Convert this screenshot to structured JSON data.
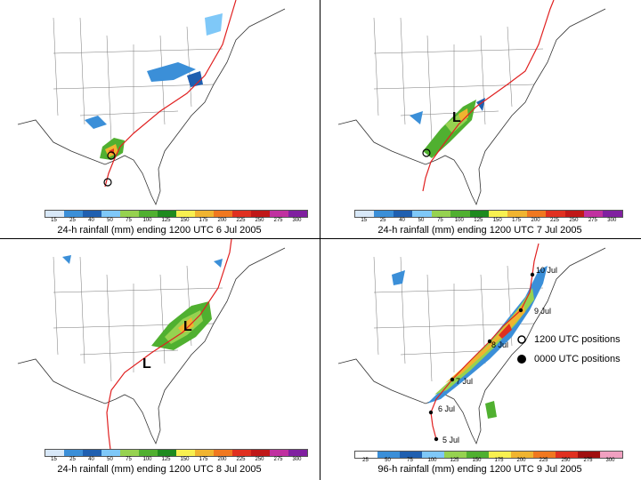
{
  "panels": [
    {
      "caption": "24-h rainfall (mm) ending 1200 UTC 6 Jul 2005",
      "low_marker": ""
    },
    {
      "caption": "24-h rainfall (mm) ending 1200 UTC 7 Jul 2005",
      "low_marker": "L"
    },
    {
      "caption": "24-h rainfall (mm) ending 1200 UTC 8 Jul 2005",
      "low_marker": "L"
    },
    {
      "caption": "96-h rainfall (mm) ending 1200 UTC 9 Jul 2005"
    }
  ],
  "low_marker_2": "L",
  "scale_24h": {
    "ticks": [
      "15",
      "25",
      "40",
      "50",
      "75",
      "100",
      "125",
      "150",
      "175",
      "200",
      "225",
      "250",
      "275",
      "300"
    ],
    "colors": [
      "#d8e8f8",
      "#3b8fd8",
      "#1f5fb0",
      "#7fc8f8",
      "#96d250",
      "#50b030",
      "#1e8a1e",
      "#f8f050",
      "#f0b430",
      "#f07820",
      "#e03020",
      "#c01818",
      "#c030a0",
      "#8020a0"
    ]
  },
  "scale_96h": {
    "ticks": [
      "25",
      "50",
      "75",
      "100",
      "125",
      "150",
      "175",
      "200",
      "225",
      "250",
      "275",
      "300"
    ],
    "colors": [
      "#ffffff",
      "#3b8fd8",
      "#1f5fb0",
      "#7fc8f8",
      "#96d250",
      "#50b030",
      "#f8f050",
      "#f0b430",
      "#f07820",
      "#e03020",
      "#a01010",
      "#f0a0c0"
    ]
  },
  "track_labels": [
    "10 Jul",
    "9 Jul",
    "8 Jul",
    "7 Jul",
    "6 Jul",
    "5 Jul"
  ],
  "legend": {
    "positions_1200": "1200 UTC positions",
    "positions_0000": "0000 UTC positions"
  },
  "colors": {
    "track": "#e02020",
    "coast": "#333333",
    "border": "#777777"
  }
}
